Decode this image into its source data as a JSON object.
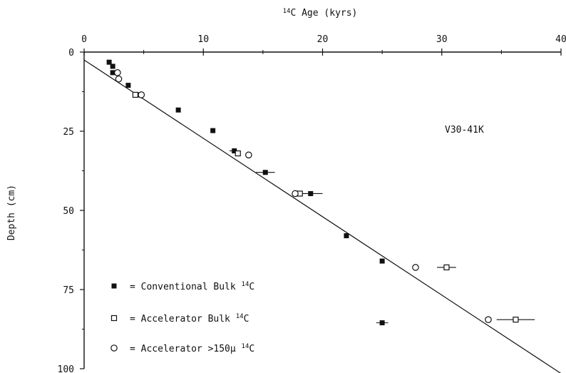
{
  "chart_data": {
    "type": "scatter",
    "xlabel_sup": "14",
    "xlabel": "C Age (kyrs)",
    "ylabel": "Depth (cm)",
    "annotation": "V30-41K",
    "xlim": [
      0,
      40
    ],
    "ylim": [
      100,
      0
    ],
    "x_axis_position": "top",
    "y_axis_inverted": true,
    "grid": false,
    "x_ticks": [
      0,
      10,
      20,
      30,
      40
    ],
    "y_ticks": [
      0,
      25,
      50,
      75,
      100
    ],
    "regression_line": {
      "x": [
        0,
        40
      ],
      "y": [
        2.5,
        101.5
      ],
      "color": "#111111"
    },
    "series": [
      {
        "name": "= Conventional Bulk 14C",
        "legend_text": "= Conventional Bulk",
        "legend_sup": "14",
        "legend_tail": "C",
        "marker": "filled-square",
        "points": [
          {
            "x": 2.1,
            "y": 3.2
          },
          {
            "x": 2.4,
            "y": 4.5
          },
          {
            "x": 2.4,
            "y": 6.5
          },
          {
            "x": 3.7,
            "y": 10.5
          },
          {
            "x": 4.5,
            "y": 13.5
          },
          {
            "x": 7.9,
            "y": 18.3
          },
          {
            "x": 10.8,
            "y": 24.8
          },
          {
            "x": 12.6,
            "y": 31.2,
            "xerr": 0.4
          },
          {
            "x": 15.2,
            "y": 38.0,
            "xerr": 0.8
          },
          {
            "x": 19.0,
            "y": 44.7,
            "xerr": 1.0
          },
          {
            "x": 22.0,
            "y": 58.0
          },
          {
            "x": 25.0,
            "y": 66.0
          },
          {
            "x": 25.0,
            "y": 85.5,
            "xerr": 0.5
          }
        ]
      },
      {
        "name": "= Accelerator Bulk 14C",
        "legend_text": "= Accelerator Bulk",
        "legend_sup": "14",
        "legend_tail": "C",
        "marker": "open-square",
        "points": [
          {
            "x": 4.3,
            "y": 13.5
          },
          {
            "x": 12.9,
            "y": 32.0
          },
          {
            "x": 18.1,
            "y": 44.7
          },
          {
            "x": 30.4,
            "y": 68.0,
            "xerr": 0.8
          },
          {
            "x": 36.2,
            "y": 84.5,
            "xerr": 1.6
          }
        ]
      },
      {
        "name": "= Accelerator >150μ 14C",
        "legend_text": "= Accelerator >150μ",
        "legend_sup": "14",
        "legend_tail": "C",
        "marker": "open-circle",
        "points": [
          {
            "x": 2.8,
            "y": 6.5
          },
          {
            "x": 2.9,
            "y": 8.5
          },
          {
            "x": 4.8,
            "y": 13.5
          },
          {
            "x": 13.8,
            "y": 32.5
          },
          {
            "x": 17.7,
            "y": 44.7
          },
          {
            "x": 27.8,
            "y": 68.0
          },
          {
            "x": 33.9,
            "y": 84.5
          }
        ]
      }
    ]
  }
}
